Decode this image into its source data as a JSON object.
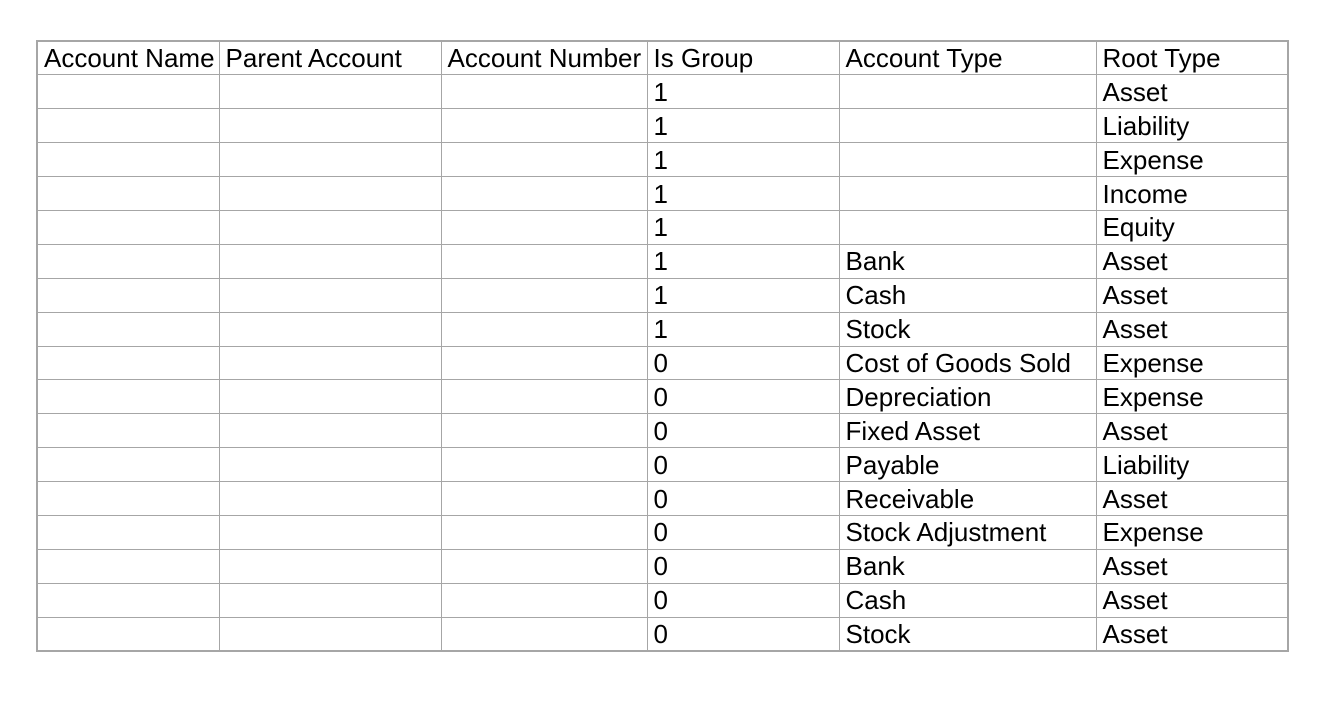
{
  "table": {
    "columns": [
      {
        "key": "account_name",
        "label": "Account Name"
      },
      {
        "key": "parent_account",
        "label": "Parent Account"
      },
      {
        "key": "account_number",
        "label": "Account Number"
      },
      {
        "key": "is_group",
        "label": "Is Group"
      },
      {
        "key": "account_type",
        "label": "Account Type"
      },
      {
        "key": "root_type",
        "label": "Root Type"
      }
    ],
    "rows": [
      [
        "",
        "",
        "",
        "1",
        "",
        "Asset"
      ],
      [
        "",
        "",
        "",
        "1",
        "",
        "Liability"
      ],
      [
        "",
        "",
        "",
        "1",
        "",
        "Expense"
      ],
      [
        "",
        "",
        "",
        "1",
        "",
        "Income"
      ],
      [
        "",
        "",
        "",
        "1",
        "",
        "Equity"
      ],
      [
        "",
        "",
        "",
        "1",
        "Bank",
        "Asset"
      ],
      [
        "",
        "",
        "",
        "1",
        "Cash",
        "Asset"
      ],
      [
        "",
        "",
        "",
        "1",
        "Stock",
        "Asset"
      ],
      [
        "",
        "",
        "",
        "0",
        "Cost of Goods Sold",
        "Expense"
      ],
      [
        "",
        "",
        "",
        "0",
        "Depreciation",
        "Expense"
      ],
      [
        "",
        "",
        "",
        "0",
        "Fixed Asset",
        "Asset"
      ],
      [
        "",
        "",
        "",
        "0",
        "Payable",
        "Liability"
      ],
      [
        "",
        "",
        "",
        "0",
        "Receivable",
        "Asset"
      ],
      [
        "",
        "",
        "",
        "0",
        "Stock Adjustment",
        "Expense"
      ],
      [
        "",
        "",
        "",
        "0",
        "Bank",
        "Asset"
      ],
      [
        "",
        "",
        "",
        "0",
        "Cash",
        "Asset"
      ],
      [
        "",
        "",
        "",
        "0",
        "Stock",
        "Asset"
      ]
    ]
  },
  "colors": {
    "border": "#a6a6a6",
    "text": "#000000",
    "background": "#ffffff"
  }
}
